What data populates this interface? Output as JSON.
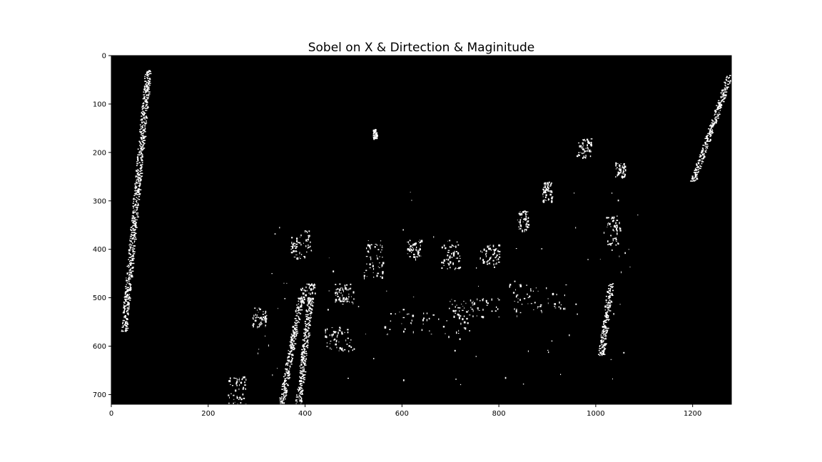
{
  "chart_data": {
    "type": "heatmap",
    "title": "Sobel on X & Dirtection & Maginitude",
    "xlabel": "",
    "ylabel": "",
    "xlim": [
      0,
      1280
    ],
    "ylim": [
      720,
      0
    ],
    "x_ticks": [
      0,
      200,
      400,
      600,
      800,
      1000,
      1200
    ],
    "y_ticks": [
      0,
      100,
      200,
      300,
      400,
      500,
      600,
      700
    ],
    "colormap": "gray",
    "background_color": "#000000",
    "foreground_color": "#ffffff",
    "description_values": "binary thresholded image (0 = black, 1 = white)",
    "features": [
      {
        "name": "left-lane-line",
        "x_start": 20,
        "x_end": 80,
        "y_start": 30,
        "y_end": 570,
        "x_top": 75,
        "x_bottom": 25
      },
      {
        "name": "right-lane-line-top",
        "x_start": 1180,
        "x_end": 1280,
        "y_start": 40,
        "y_end": 260,
        "x_top": 1275,
        "x_bottom": 1200
      },
      {
        "name": "right-lane-line-bottom",
        "x_start": 990,
        "x_end": 1050,
        "y_start": 470,
        "y_end": 620,
        "x_top": 1030,
        "x_bottom": 1010
      },
      {
        "name": "center-lane-left",
        "x_start": 340,
        "x_end": 400,
        "y_start": 500,
        "y_end": 720,
        "x_top": 390,
        "x_bottom": 350
      },
      {
        "name": "center-lane-right",
        "x_start": 380,
        "x_end": 420,
        "y_start": 500,
        "y_end": 720,
        "x_top": 410,
        "x_bottom": 385
      }
    ]
  }
}
